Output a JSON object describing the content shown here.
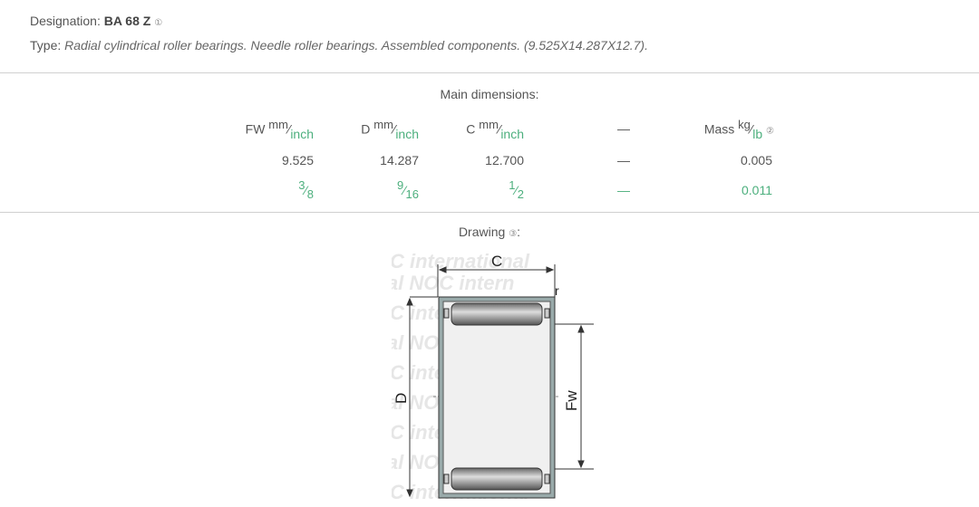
{
  "designation": {
    "label": "Designation:",
    "value": "BA 68 Z",
    "info_marker": "①"
  },
  "type": {
    "label": "Type:",
    "value": "Radial cylindrical roller bearings. Needle roller bearings. Assembled components. (9.525X14.287X12.7)."
  },
  "main_dimensions": {
    "title": "Main dimensions:",
    "columns": [
      {
        "name": "FW",
        "unit_top": "mm",
        "unit_bottom": "inch",
        "mm": "9.525",
        "inch_num": "3",
        "inch_den": "8"
      },
      {
        "name": "D",
        "unit_top": "mm",
        "unit_bottom": "inch",
        "mm": "14.287",
        "inch_num": "9",
        "inch_den": "16"
      },
      {
        "name": "C",
        "unit_top": "mm",
        "unit_bottom": "inch",
        "mm": "12.700",
        "inch_num": "1",
        "inch_den": "2"
      },
      {
        "name": "—",
        "mm": "—",
        "inch": "—"
      },
      {
        "name": "Mass",
        "unit_top": "kg",
        "unit_bottom": "lb",
        "info_marker": "②",
        "mm": "0.005",
        "inch": "0.011"
      }
    ]
  },
  "drawing": {
    "title": "Drawing",
    "info_marker": "③",
    "labels": {
      "c": "C",
      "d": "D",
      "fw": "Fw",
      "r": "r"
    },
    "watermark": "NOC international"
  },
  "colors": {
    "accent_green": "#4caf7d",
    "text": "#555555"
  }
}
